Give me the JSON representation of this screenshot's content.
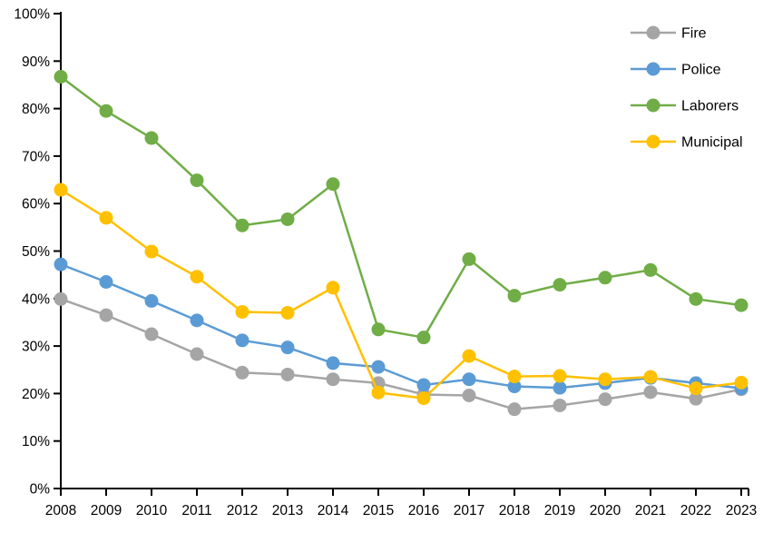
{
  "chart_data": {
    "type": "line",
    "title": "",
    "xlabel": "",
    "ylabel": "",
    "x_categories": [
      "2008",
      "2009",
      "2010",
      "2011",
      "2012",
      "2013",
      "2014",
      "2015",
      "2016",
      "2017",
      "2018",
      "2019",
      "2020",
      "2021",
      "2022",
      "2023"
    ],
    "series": [
      {
        "name": "Fire",
        "color": "#A5A5A5",
        "values": [
          39.9,
          36.5,
          32.5,
          28.3,
          24.4,
          24.0,
          23.0,
          22.2,
          19.8,
          19.6,
          16.7,
          17.5,
          18.8,
          20.3,
          18.9,
          20.9
        ]
      },
      {
        "name": "Police",
        "color": "#5B9BD5",
        "values": [
          47.2,
          43.5,
          39.5,
          35.4,
          31.2,
          29.7,
          26.4,
          25.6,
          21.8,
          23.0,
          21.5,
          21.2,
          22.2,
          23.3,
          22.2,
          21.1
        ]
      },
      {
        "name": "Laborers",
        "color": "#70AD47",
        "values": [
          86.7,
          79.5,
          73.8,
          64.9,
          55.4,
          56.7,
          64.1,
          33.5,
          31.8,
          48.3,
          40.6,
          42.9,
          44.4,
          46.0,
          39.9,
          38.6
        ]
      },
      {
        "name": "Municipal",
        "color": "#FFC000",
        "values": [
          62.9,
          57.0,
          49.9,
          44.6,
          37.2,
          37.0,
          42.3,
          20.2,
          19.0,
          27.9,
          23.6,
          23.7,
          23.0,
          23.5,
          21.1,
          22.3
        ]
      }
    ],
    "ylim": [
      0,
      100
    ],
    "y_tick_step": 10,
    "y_tick_labels": [
      "0%",
      "10%",
      "20%",
      "30%",
      "40%",
      "50%",
      "60%",
      "70%",
      "80%",
      "90%",
      "100%"
    ],
    "legend": {
      "position": "top-right",
      "entries": [
        "Fire",
        "Police",
        "Laborers",
        "Municipal"
      ]
    },
    "grid": false,
    "axis_color": "#000000",
    "background_color": "#FFFFFF"
  }
}
